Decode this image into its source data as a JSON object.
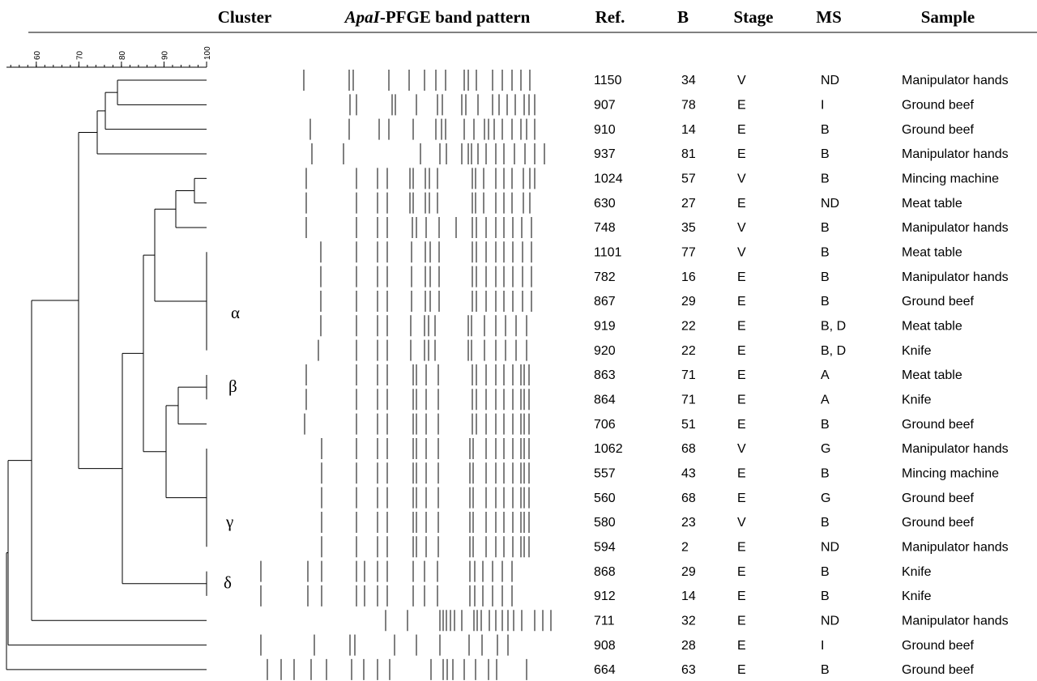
{
  "headers": {
    "cluster": "Cluster",
    "band_italic": "ApaI",
    "band_rest": "-PFGE band pattern",
    "ref": "Ref.",
    "b": "B",
    "stage": "Stage",
    "ms": "MS",
    "sample": "Sample"
  },
  "scale": {
    "lim": [
      53,
      100
    ],
    "ticks": [
      60,
      70,
      80,
      90,
      100
    ]
  },
  "clusters": [
    {
      "label": "α",
      "row": 9.5
    },
    {
      "label": "β",
      "row": 12.5
    },
    {
      "label": "γ",
      "row": 18
    },
    {
      "label": "δ",
      "row": 20.5
    }
  ],
  "rows": [
    {
      "ref": 1150,
      "b": 34,
      "stage": "V",
      "ms": "ND",
      "sample": "Manipulator hands"
    },
    {
      "ref": 907,
      "b": 78,
      "stage": "E",
      "ms": "I",
      "sample": "Ground beef"
    },
    {
      "ref": 910,
      "b": 14,
      "stage": "E",
      "ms": "B",
      "sample": "Ground beef"
    },
    {
      "ref": 937,
      "b": 81,
      "stage": "E",
      "ms": "B",
      "sample": "Manipulator hands"
    },
    {
      "ref": 1024,
      "b": 57,
      "stage": "V",
      "ms": "B",
      "sample": "Mincing machine"
    },
    {
      "ref": 630,
      "b": 27,
      "stage": "E",
      "ms": "ND",
      "sample": "Meat table"
    },
    {
      "ref": 748,
      "b": 35,
      "stage": "V",
      "ms": "B",
      "sample": "Manipulator hands"
    },
    {
      "ref": 1101,
      "b": 77,
      "stage": "V",
      "ms": "B",
      "sample": "Meat table"
    },
    {
      "ref": 782,
      "b": 16,
      "stage": "E",
      "ms": "B",
      "sample": "Manipulator hands"
    },
    {
      "ref": 867,
      "b": 29,
      "stage": "E",
      "ms": "B",
      "sample": "Ground beef"
    },
    {
      "ref": 919,
      "b": 22,
      "stage": "E",
      "ms": "B, D",
      "sample": "Meat table"
    },
    {
      "ref": 920,
      "b": 22,
      "stage": "E",
      "ms": "B, D",
      "sample": "Knife"
    },
    {
      "ref": 863,
      "b": 71,
      "stage": "E",
      "ms": "A",
      "sample": "Meat table"
    },
    {
      "ref": 864,
      "b": 71,
      "stage": "E",
      "ms": "A",
      "sample": "Knife"
    },
    {
      "ref": 706,
      "b": 51,
      "stage": "E",
      "ms": "B",
      "sample": "Ground beef"
    },
    {
      "ref": 1062,
      "b": 68,
      "stage": "V",
      "ms": "G",
      "sample": "Manipulator hands"
    },
    {
      "ref": 557,
      "b": 43,
      "stage": "E",
      "ms": "B",
      "sample": "Mincing machine"
    },
    {
      "ref": 560,
      "b": 68,
      "stage": "E",
      "ms": "G",
      "sample": "Ground beef"
    },
    {
      "ref": 580,
      "b": 23,
      "stage": "V",
      "ms": "B",
      "sample": "Ground beef"
    },
    {
      "ref": 594,
      "b": 2,
      "stage": "E",
      "ms": "ND",
      "sample": "Manipulator hands"
    },
    {
      "ref": 868,
      "b": 29,
      "stage": "E",
      "ms": "B",
      "sample": "Knife"
    },
    {
      "ref": 912,
      "b": 14,
      "stage": "E",
      "ms": "B",
      "sample": "Knife"
    },
    {
      "ref": 711,
      "b": 32,
      "stage": "E",
      "ms": "ND",
      "sample": "Manipulator hands"
    },
    {
      "ref": 908,
      "b": 28,
      "stage": "E",
      "ms": "I",
      "sample": "Ground beef"
    },
    {
      "ref": 664,
      "b": 63,
      "stage": "E",
      "ms": "B",
      "sample": "Ground beef"
    }
  ]
}
